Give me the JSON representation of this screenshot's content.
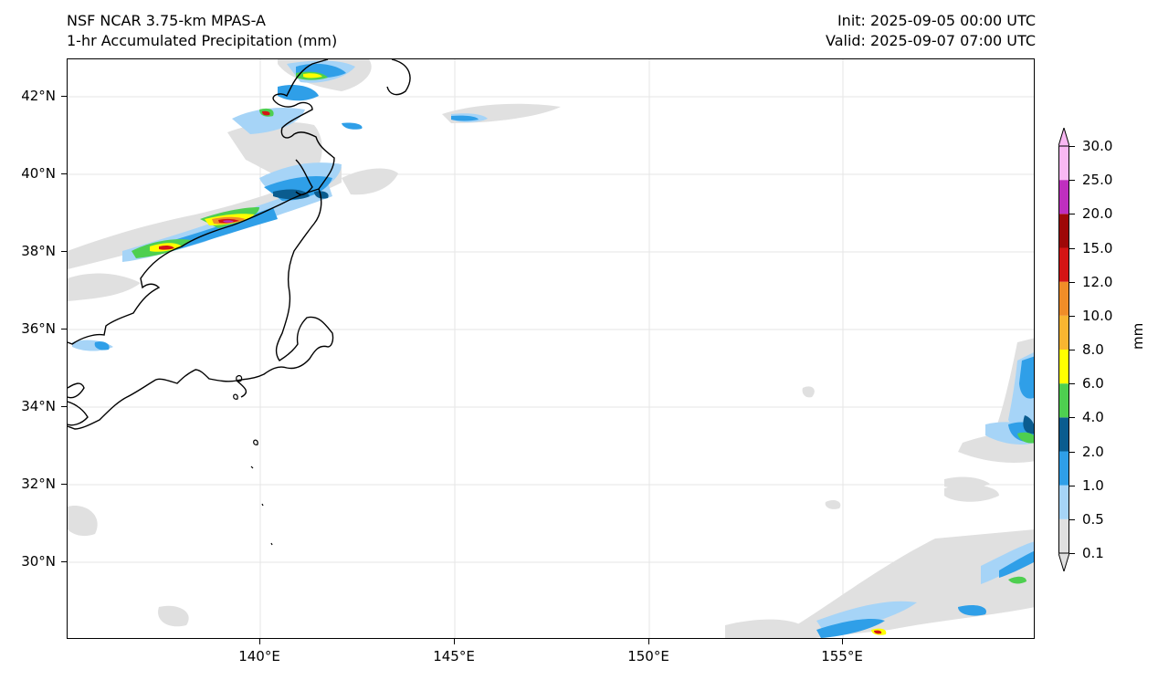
{
  "header": {
    "model": "NSF NCAR 3.75-km MPAS-A",
    "field": "1-hr Accumulated Precipitation (mm)",
    "init": "Init: 2025-09-05 00:00 UTC",
    "valid": "Valid: 2025-09-07 07:00 UTC"
  },
  "axes": {
    "lat_labels": [
      "42°N",
      "40°N",
      "38°N",
      "36°N",
      "34°N",
      "32°N",
      "30°N"
    ],
    "lon_labels": [
      "140°E",
      "145°E",
      "150°E",
      "155°E"
    ]
  },
  "colorbar": {
    "units": "mm",
    "levels": [
      "0.1",
      "0.5",
      "1.0",
      "2.0",
      "4.0",
      "6.0",
      "8.0",
      "10.0",
      "12.0",
      "15.0",
      "20.0",
      "25.0",
      "30.0"
    ],
    "colors": [
      "#e0e0e0",
      "#a6d4f7",
      "#2f9fe8",
      "#0a5c8f",
      "#4ecf50",
      "#ffff00",
      "#f9b531",
      "#f08d28",
      "#d41515",
      "#9e0808",
      "#bf2fbf",
      "#f9b8f3"
    ]
  }
}
